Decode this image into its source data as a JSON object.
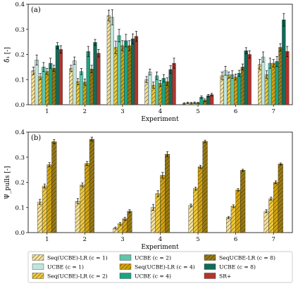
{
  "chart_data": [
    {
      "type": "bar",
      "panel_label": "(a)",
      "categories": [
        "1",
        "2",
        "3",
        "4",
        "5",
        "6",
        "7"
      ],
      "xlabel": "Experiment",
      "ylabel": "δ̂₁ [-]",
      "ylim": [
        0,
        0.4
      ],
      "yticks": [
        "0.0",
        "0.1",
        "0.2",
        "0.3",
        "0.4"
      ],
      "series": [
        {
          "name": "Seq(UCBE)-LR (c = 1)",
          "values": [
            0.135,
            0.145,
            0.355,
            0.1,
            0.005,
            0.115,
            0.16
          ],
          "errors": [
            0.015,
            0.012,
            0.022,
            0.012,
            0.003,
            0.015,
            0.02
          ]
        },
        {
          "name": "UCBE (c = 1)",
          "values": [
            0.178,
            0.175,
            0.348,
            0.13,
            0.007,
            0.135,
            0.19
          ],
          "errors": [
            0.02,
            0.015,
            0.03,
            0.012,
            0.003,
            0.018,
            0.02
          ]
        },
        {
          "name": "Seq(UCBE)-LR (c = 2)",
          "values": [
            0.112,
            0.092,
            0.228,
            0.078,
            0.006,
            0.118,
            0.12
          ],
          "errors": [
            0.012,
            0.012,
            0.025,
            0.012,
            0.003,
            0.012,
            0.015
          ]
        },
        {
          "name": "UCBE (c = 2)",
          "values": [
            0.15,
            0.132,
            0.275,
            0.115,
            0.008,
            0.12,
            0.165
          ],
          "errors": [
            0.018,
            0.012,
            0.025,
            0.015,
            0.003,
            0.015,
            0.02
          ]
        },
        {
          "name": "Seq(UCBE)-LR (c = 4)",
          "values": [
            0.132,
            0.09,
            0.235,
            0.085,
            0.007,
            0.11,
            0.165
          ],
          "errors": [
            0.012,
            0.012,
            0.02,
            0.012,
            0.003,
            0.012,
            0.015
          ]
        },
        {
          "name": "UCBE (c = 4)",
          "values": [
            0.165,
            0.212,
            0.255,
            0.105,
            0.03,
            0.125,
            0.172
          ],
          "errors": [
            0.02,
            0.02,
            0.025,
            0.015,
            0.005,
            0.012,
            0.02
          ]
        },
        {
          "name": "SeqUCBE-LR (c = 8)",
          "values": [
            0.145,
            0.142,
            0.235,
            0.092,
            0.018,
            0.15,
            0.228
          ],
          "errors": [
            0.012,
            0.015,
            0.02,
            0.015,
            0.005,
            0.012,
            0.015
          ]
        },
        {
          "name": "UCBE (c = 8)",
          "values": [
            0.235,
            0.248,
            0.262,
            0.14,
            0.036,
            0.215,
            0.338
          ],
          "errors": [
            0.012,
            0.012,
            0.02,
            0.015,
            0.005,
            0.012,
            0.025
          ]
        },
        {
          "name": "SR+",
          "values": [
            0.22,
            0.205,
            0.272,
            0.165,
            0.04,
            0.2,
            0.212
          ],
          "errors": [
            0.015,
            0.015,
            0.02,
            0.02,
            0.005,
            0.015,
            0.02
          ]
        }
      ]
    },
    {
      "type": "bar",
      "panel_label": "(b)",
      "categories": [
        "1",
        "2",
        "3",
        "4",
        "5",
        "6",
        "7"
      ],
      "xlabel": "Experiment",
      "ylabel": "Ψ_pulls [-]",
      "ylim": [
        0,
        0.4
      ],
      "yticks": [
        "0.0",
        "0.1",
        "0.2",
        "0.3",
        "0.4"
      ],
      "series": [
        {
          "name": "Seq(UCBE)-LR (c = 1)",
          "values": [
            0.122,
            0.125,
            0.018,
            0.1,
            0.108,
            0.06,
            0.085
          ],
          "errors": [
            0.01,
            0.01,
            0.004,
            0.012,
            0.006,
            0.004,
            0.006
          ]
        },
        {
          "name": "Seq(UCBE)-LR (c = 2)",
          "values": [
            0.185,
            0.19,
            0.035,
            0.155,
            0.175,
            0.105,
            0.135
          ],
          "errors": [
            0.008,
            0.008,
            0.005,
            0.012,
            0.006,
            0.005,
            0.006
          ]
        },
        {
          "name": "Seq(UCBE)-LR (c = 4)",
          "values": [
            0.27,
            0.275,
            0.055,
            0.228,
            0.262,
            0.17,
            0.2
          ],
          "errors": [
            0.008,
            0.008,
            0.006,
            0.012,
            0.006,
            0.005,
            0.006
          ]
        },
        {
          "name": "SeqUCBE-LR (c = 8)",
          "values": [
            0.362,
            0.372,
            0.085,
            0.312,
            0.363,
            0.248,
            0.273
          ],
          "errors": [
            0.008,
            0.008,
            0.006,
            0.01,
            0.005,
            0.004,
            0.004
          ]
        }
      ]
    }
  ],
  "series_styles": {
    "Seq(UCBE)-LR (c = 1)": {
      "color": "#f7e29a",
      "hatch": true
    },
    "UCBE (c = 1)": {
      "color": "#bfe5de",
      "hatch": false
    },
    "Seq(UCBE)-LR (c = 2)": {
      "color": "#f0c93b",
      "hatch": true
    },
    "UCBE (c = 2)": {
      "color": "#5ec5ab",
      "hatch": false
    },
    "Seq(UCBE)-LR (c = 4)": {
      "color": "#d4a40e",
      "hatch": true
    },
    "UCBE (c = 4)": {
      "color": "#1aa383",
      "hatch": false
    },
    "SeqUCBE-LR (c = 8)": {
      "color": "#9a7a10",
      "hatch": true
    },
    "UCBE (c = 8)": {
      "color": "#126b58",
      "hatch": false
    },
    "SR+": {
      "color": "#b3342c",
      "hatch": false
    }
  },
  "legend": {
    "placement": "bottom",
    "entries": [
      "Seq(UCBE)-LR (c = 1)",
      "UCBE (c = 1)",
      "Seq(UCBE)-LR (c = 2)",
      "UCBE (c = 2)",
      "Seq(UCBE)-LR (c = 4)",
      "UCBE (c = 4)",
      "SeqUCBE-LR (c = 8)",
      "UCBE (c = 8)",
      "SR+"
    ],
    "labels": [
      "Seq(UCBE)-LR (c = 1)",
      "UCBE (c = 1)",
      "Seq(UCBE)-LR (c = 2)",
      "UCBE (c = 2)",
      "Seq(UCBE)-LR (c = 4)",
      "UCBE (c = 4)",
      "SeqUCBE-LR (c = 8)",
      "UCBE (c = 8)",
      "SR+"
    ]
  }
}
